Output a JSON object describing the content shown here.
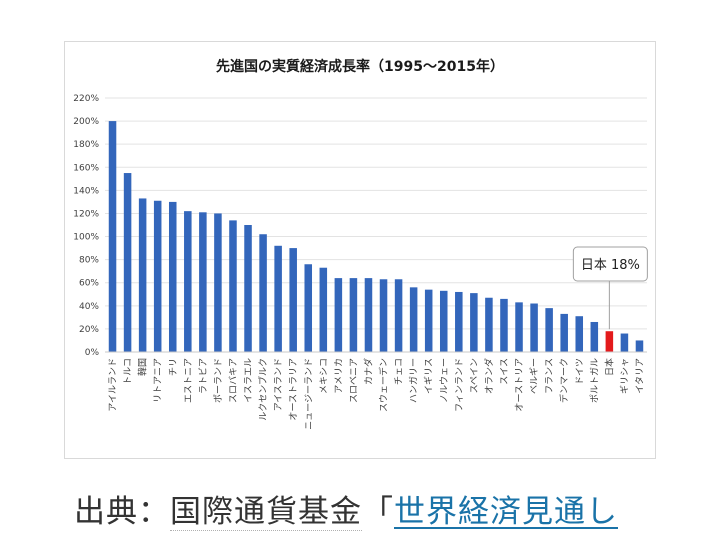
{
  "chart_data": {
    "type": "bar",
    "title": "先進国の実質経済成長率（1995～2015年）",
    "categories": [
      "アイルランド",
      "トルコ",
      "韓国",
      "リトアニア",
      "チリ",
      "エストニア",
      "ラトビア",
      "ポーランド",
      "スロバキア",
      "イスラエル",
      "ルクセンブルク",
      "アイスランド",
      "オーストラリア",
      "ニュージーランド",
      "メキシコ",
      "アメリカ",
      "スロベニア",
      "カナダ",
      "スウェーデン",
      "チェコ",
      "ハンガリー",
      "イギリス",
      "ノルウェー",
      "フィンランド",
      "スペイン",
      "オランダ",
      "スイス",
      "オーストリア",
      "ベルギー",
      "フランス",
      "デンマーク",
      "ドイツ",
      "ポルトガル",
      "日本",
      "ギリシャ",
      "イタリア"
    ],
    "values": [
      200,
      155,
      133,
      131,
      130,
      122,
      121,
      120,
      114,
      110,
      102,
      92,
      90,
      76,
      73,
      64,
      64,
      64,
      63,
      63,
      56,
      54,
      53,
      52,
      51,
      47,
      46,
      43,
      42,
      38,
      33,
      31,
      26,
      18,
      16,
      10
    ],
    "highlight": {
      "index": 33,
      "color": "#e31a1c",
      "label": "日本 18%"
    },
    "bar_color": "#3366bb",
    "yticks": [
      0,
      20,
      40,
      60,
      80,
      100,
      120,
      140,
      160,
      180,
      200,
      220
    ],
    "ytick_labels": [
      "0%",
      "20%",
      "40%",
      "60%",
      "80%",
      "100%",
      "120%",
      "140%",
      "160%",
      "180%",
      "200%",
      "220%"
    ],
    "ylim": [
      0,
      220
    ],
    "xlabel": "",
    "ylabel": "",
    "grid": true,
    "legend": "none"
  },
  "caption": {
    "prefix": "出典：",
    "source": "国際通貨基金",
    "bracket": "「",
    "link_text": "世界経済見通し"
  }
}
